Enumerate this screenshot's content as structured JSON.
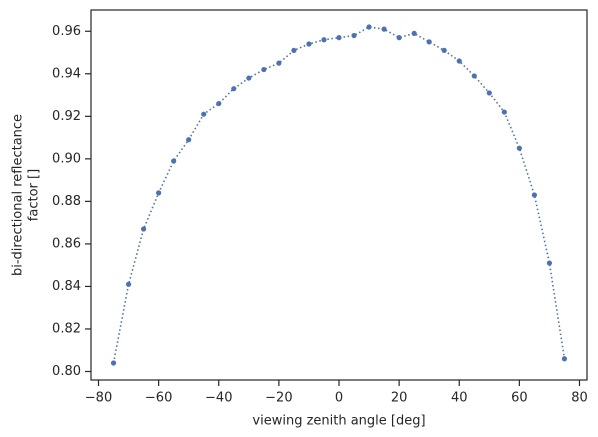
{
  "chart_data": {
    "type": "line",
    "xlabel": "viewing zenith angle [deg]",
    "ylabel": [
      "bi-directional reflectance",
      "factor []"
    ],
    "x": [
      -75,
      -70,
      -65,
      -60,
      -55,
      -50,
      -45,
      -40,
      -35,
      -30,
      -25,
      -20,
      -15,
      -10,
      -5,
      0,
      5,
      10,
      15,
      20,
      25,
      30,
      35,
      40,
      45,
      50,
      55,
      60,
      65,
      70,
      75
    ],
    "series": [
      {
        "color": "#4c72b0",
        "values": [
          0.804,
          0.841,
          0.867,
          0.884,
          0.899,
          0.909,
          0.921,
          0.926,
          0.933,
          0.938,
          0.942,
          0.945,
          0.951,
          0.954,
          0.956,
          0.957,
          0.958,
          0.962,
          0.961,
          0.957,
          0.959,
          0.955,
          0.951,
          0.946,
          0.939,
          0.931,
          0.922,
          0.905,
          0.883,
          0.851,
          0.806
        ]
      }
    ],
    "xlim": [
      -82.5,
      82.5
    ],
    "ylim": [
      0.796,
      0.97
    ],
    "xticks": [
      {
        "value": -80,
        "label": "−80"
      },
      {
        "value": -60,
        "label": "−60"
      },
      {
        "value": -40,
        "label": "−40"
      },
      {
        "value": -20,
        "label": "−20"
      },
      0,
      20,
      40,
      60,
      80
    ],
    "yticks": [
      {
        "value": 0.8,
        "label": "0.80"
      },
      {
        "value": 0.82,
        "label": "0.82"
      },
      {
        "value": 0.84,
        "label": "0.84"
      },
      {
        "value": 0.86,
        "label": "0.86"
      },
      {
        "value": 0.88,
        "label": "0.88"
      },
      {
        "value": 0.9,
        "label": "0.90"
      },
      {
        "value": 0.92,
        "label": "0.92"
      },
      {
        "value": 0.94,
        "label": "0.94"
      },
      {
        "value": 0.96,
        "label": "0.96"
      }
    ],
    "grid": false
  }
}
